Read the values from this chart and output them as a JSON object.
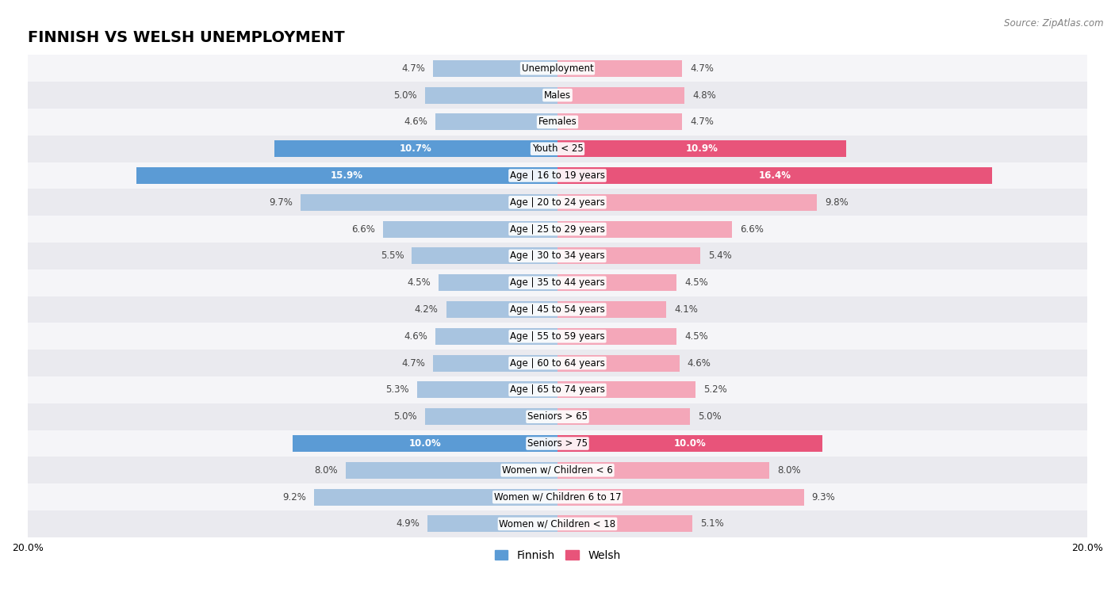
{
  "title": "FINNISH VS WELSH UNEMPLOYMENT",
  "source": "Source: ZipAtlas.com",
  "categories": [
    "Unemployment",
    "Males",
    "Females",
    "Youth < 25",
    "Age | 16 to 19 years",
    "Age | 20 to 24 years",
    "Age | 25 to 29 years",
    "Age | 30 to 34 years",
    "Age | 35 to 44 years",
    "Age | 45 to 54 years",
    "Age | 55 to 59 years",
    "Age | 60 to 64 years",
    "Age | 65 to 74 years",
    "Seniors > 65",
    "Seniors > 75",
    "Women w/ Children < 6",
    "Women w/ Children 6 to 17",
    "Women w/ Children < 18"
  ],
  "finnish": [
    4.7,
    5.0,
    4.6,
    10.7,
    15.9,
    9.7,
    6.6,
    5.5,
    4.5,
    4.2,
    4.6,
    4.7,
    5.3,
    5.0,
    10.0,
    8.0,
    9.2,
    4.9
  ],
  "welsh": [
    4.7,
    4.8,
    4.7,
    10.9,
    16.4,
    9.8,
    6.6,
    5.4,
    4.5,
    4.1,
    4.5,
    4.6,
    5.2,
    5.0,
    10.0,
    8.0,
    9.3,
    5.1
  ],
  "finnish_color": "#a8c4e0",
  "welsh_color": "#f4a7b9",
  "finnish_highlight_color": "#5b9bd5",
  "welsh_highlight_color": "#e8547a",
  "highlight_rows": [
    3,
    4,
    14
  ],
  "row_bg_even": "#f0f0f0",
  "row_bg_odd": "#e0e0e8",
  "max_val": 20.0,
  "label_fontsize": 8.5,
  "title_fontsize": 14,
  "legend_fontsize": 10,
  "bar_height": 0.62
}
